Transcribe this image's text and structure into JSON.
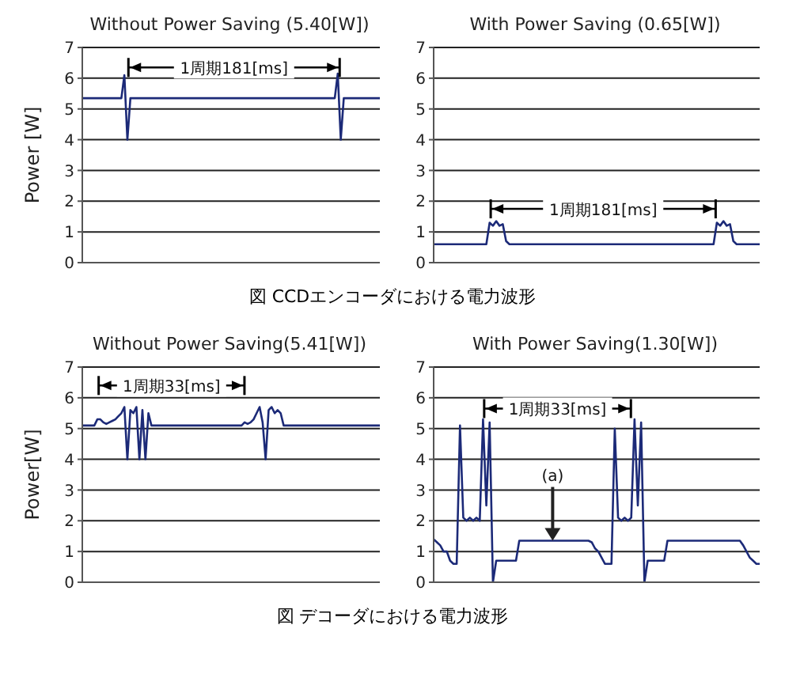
{
  "chart_data": [
    {
      "type": "line",
      "title": "Without Power Saving (5.40[W])",
      "ylabel": "Power [W]",
      "ylim": [
        0,
        7
      ],
      "yticks": [
        0,
        1,
        2,
        3,
        4,
        5,
        6,
        7
      ],
      "grid": "y",
      "tick_labels": "y",
      "marker": "none",
      "annotations": [
        "1周期181[ms]",
        "図 CCDエンコーダにおける電力波形"
      ],
      "categories": [
        null,
        null,
        null,
        null,
        null,
        null,
        null,
        null,
        null,
        null,
        null,
        null,
        null,
        null,
        null,
        null,
        null,
        null,
        null,
        null,
        null,
        null,
        null,
        null,
        null,
        null,
        null,
        null,
        null,
        null,
        null,
        null,
        null,
        null,
        null,
        null,
        null,
        null,
        null,
        null,
        null,
        null,
        null,
        null,
        null,
        null,
        null,
        null,
        null,
        null,
        null,
        null,
        null,
        null,
        null,
        null,
        null,
        null,
        null,
        null,
        null,
        null,
        null,
        null,
        null,
        null,
        null,
        null,
        null,
        null,
        null,
        null,
        null,
        null,
        null,
        null,
        null,
        null,
        null,
        null,
        null,
        null,
        null,
        null,
        null,
        null,
        null,
        null,
        null,
        null,
        null,
        null,
        null,
        null,
        null,
        null,
        null,
        null,
        null,
        null
      ],
      "series": [
        {
          "color": "#1c2a78",
          "values": [
            5.35,
            5.35,
            5.35,
            5.35,
            5.35,
            5.35,
            5.35,
            5.35,
            5.35,
            5.35,
            5.35,
            5.35,
            5.35,
            5.35,
            6.1,
            4.0,
            5.35,
            5.35,
            5.35,
            5.35,
            5.35,
            5.35,
            5.35,
            5.35,
            5.35,
            5.35,
            5.35,
            5.35,
            5.35,
            5.35,
            5.35,
            5.35,
            5.35,
            5.35,
            5.35,
            5.35,
            5.35,
            5.35,
            5.35,
            5.35,
            5.35,
            5.35,
            5.35,
            5.35,
            5.35,
            5.35,
            5.35,
            5.35,
            5.35,
            5.35,
            5.35,
            5.35,
            5.35,
            5.35,
            5.35,
            5.35,
            5.35,
            5.35,
            5.35,
            5.35,
            5.35,
            5.35,
            5.35,
            5.35,
            5.35,
            5.35,
            5.35,
            5.35,
            5.35,
            5.35,
            5.35,
            5.35,
            5.35,
            5.35,
            5.35,
            5.35,
            5.35,
            5.35,
            5.35,
            5.35,
            5.35,
            5.35,
            5.35,
            5.35,
            5.35,
            6.15,
            4.0,
            5.35,
            5.35,
            5.35,
            5.35,
            5.35,
            5.35,
            5.35,
            5.35,
            5.35,
            5.35,
            5.35,
            5.35,
            5.35
          ]
        }
      ]
    },
    {
      "type": "line",
      "title": "With Power Saving (0.65[W])",
      "ylim": [
        0,
        7
      ],
      "yticks": [
        0,
        1,
        2,
        3,
        4,
        5,
        6,
        7
      ],
      "grid": "y",
      "tick_labels": "y",
      "marker": "none",
      "annotations": [
        "1周期181[ms]"
      ],
      "categories": [
        null,
        null,
        null,
        null,
        null,
        null,
        null,
        null,
        null,
        null,
        null,
        null,
        null,
        null,
        null,
        null,
        null,
        null,
        null,
        null,
        null,
        null,
        null,
        null,
        null,
        null,
        null,
        null,
        null,
        null,
        null,
        null,
        null,
        null,
        null,
        null,
        null,
        null,
        null,
        null,
        null,
        null,
        null,
        null,
        null,
        null,
        null,
        null,
        null,
        null,
        null,
        null,
        null,
        null,
        null,
        null,
        null,
        null,
        null,
        null,
        null,
        null,
        null,
        null,
        null,
        null,
        null,
        null,
        null,
        null,
        null,
        null,
        null,
        null,
        null,
        null,
        null,
        null,
        null,
        null,
        null,
        null,
        null,
        null,
        null,
        null,
        null,
        null,
        null,
        null,
        null,
        null,
        null,
        null,
        null,
        null,
        null,
        null,
        null,
        null
      ],
      "series": [
        {
          "color": "#1c2a78",
          "values": [
            0.6,
            0.6,
            0.6,
            0.6,
            0.6,
            0.6,
            0.6,
            0.6,
            0.6,
            0.6,
            0.6,
            0.6,
            0.6,
            0.6,
            0.6,
            0.6,
            0.6,
            1.3,
            1.2,
            1.35,
            1.2,
            1.25,
            0.7,
            0.6,
            0.6,
            0.6,
            0.6,
            0.6,
            0.6,
            0.6,
            0.6,
            0.6,
            0.6,
            0.6,
            0.6,
            0.6,
            0.6,
            0.6,
            0.6,
            0.6,
            0.6,
            0.6,
            0.6,
            0.6,
            0.6,
            0.6,
            0.6,
            0.6,
            0.6,
            0.6,
            0.6,
            0.6,
            0.6,
            0.6,
            0.6,
            0.6,
            0.6,
            0.6,
            0.6,
            0.6,
            0.6,
            0.6,
            0.6,
            0.6,
            0.6,
            0.6,
            0.6,
            0.6,
            0.6,
            0.6,
            0.6,
            0.6,
            0.6,
            0.6,
            0.6,
            0.6,
            0.6,
            0.6,
            0.6,
            0.6,
            0.6,
            0.6,
            0.6,
            0.6,
            0.6,
            0.6,
            1.3,
            1.2,
            1.35,
            1.2,
            1.25,
            0.7,
            0.6,
            0.6,
            0.6,
            0.6,
            0.6,
            0.6,
            0.6,
            0.6
          ]
        }
      ]
    },
    {
      "type": "line",
      "title": "Without Power Saving(5.41[W])",
      "ylabel": "Power[W]",
      "ylim": [
        0,
        7
      ],
      "yticks": [
        0,
        1,
        2,
        3,
        4,
        5,
        6,
        7
      ],
      "grid": "y",
      "tick_labels": "y",
      "marker": "none",
      "annotations": [
        "1周期33[ms]",
        "図 デコーダにおける電力波形"
      ],
      "categories": [
        null,
        null,
        null,
        null,
        null,
        null,
        null,
        null,
        null,
        null,
        null,
        null,
        null,
        null,
        null,
        null,
        null,
        null,
        null,
        null,
        null,
        null,
        null,
        null,
        null,
        null,
        null,
        null,
        null,
        null,
        null,
        null,
        null,
        null,
        null,
        null,
        null,
        null,
        null,
        null,
        null,
        null,
        null,
        null,
        null,
        null,
        null,
        null,
        null,
        null,
        null,
        null,
        null,
        null,
        null,
        null,
        null,
        null,
        null,
        null,
        null,
        null,
        null,
        null,
        null,
        null,
        null,
        null,
        null,
        null,
        null,
        null,
        null,
        null,
        null,
        null,
        null,
        null,
        null,
        null,
        null,
        null,
        null,
        null,
        null,
        null,
        null,
        null,
        null,
        null,
        null,
        null,
        null,
        null,
        null,
        null,
        null,
        null,
        null,
        null
      ],
      "series": [
        {
          "color": "#1c2a78",
          "values": [
            5.1,
            5.1,
            5.1,
            5.1,
            5.1,
            5.3,
            5.3,
            5.2,
            5.15,
            5.2,
            5.25,
            5.3,
            5.4,
            5.5,
            5.7,
            4.0,
            5.6,
            5.5,
            5.7,
            4.0,
            5.6,
            4.0,
            5.5,
            5.1,
            5.1,
            5.1,
            5.1,
            5.1,
            5.1,
            5.1,
            5.1,
            5.1,
            5.1,
            5.1,
            5.1,
            5.1,
            5.1,
            5.1,
            5.1,
            5.1,
            5.1,
            5.1,
            5.1,
            5.1,
            5.1,
            5.1,
            5.1,
            5.1,
            5.1,
            5.1,
            5.1,
            5.1,
            5.1,
            5.1,
            5.2,
            5.15,
            5.2,
            5.3,
            5.5,
            5.7,
            5.2,
            4.0,
            5.6,
            5.7,
            5.5,
            5.6,
            5.5,
            5.1,
            5.1,
            5.1,
            5.1,
            5.1,
            5.1,
            5.1,
            5.1,
            5.1,
            5.1,
            5.1,
            5.1,
            5.1,
            5.1,
            5.1,
            5.1,
            5.1,
            5.1,
            5.1,
            5.1,
            5.1,
            5.1,
            5.1,
            5.1,
            5.1,
            5.1,
            5.1,
            5.1,
            5.1,
            5.1,
            5.1,
            5.1,
            5.1
          ]
        }
      ]
    },
    {
      "type": "line",
      "title": "With Power Saving(1.30[W])",
      "ylim": [
        0,
        7
      ],
      "yticks": [
        0,
        1,
        2,
        3,
        4,
        5,
        6,
        7
      ],
      "grid": "y",
      "tick_labels": "y",
      "marker": "none",
      "annotations": [
        "1周期33[ms]",
        {
          "text": "(a)",
          "y": 1.35
        }
      ],
      "categories": [
        null,
        null,
        null,
        null,
        null,
        null,
        null,
        null,
        null,
        null,
        null,
        null,
        null,
        null,
        null,
        null,
        null,
        null,
        null,
        null,
        null,
        null,
        null,
        null,
        null,
        null,
        null,
        null,
        null,
        null,
        null,
        null,
        null,
        null,
        null,
        null,
        null,
        null,
        null,
        null,
        null,
        null,
        null,
        null,
        null,
        null,
        null,
        null,
        null,
        null,
        null,
        null,
        null,
        null,
        null,
        null,
        null,
        null,
        null,
        null,
        null,
        null,
        null,
        null,
        null,
        null,
        null,
        null,
        null,
        null,
        null,
        null,
        null,
        null,
        null,
        null,
        null,
        null,
        null,
        null,
        null,
        null,
        null,
        null,
        null,
        null,
        null,
        null,
        null,
        null,
        null,
        null,
        null,
        null,
        null,
        null,
        null,
        null,
        null,
        null
      ],
      "series": [
        {
          "color": "#1c2a78",
          "values": [
            1.4,
            1.3,
            1.2,
            1.0,
            1.0,
            0.7,
            0.6,
            0.6,
            5.1,
            2.1,
            2.0,
            2.1,
            2.0,
            2.1,
            2.0,
            5.3,
            2.5,
            5.2,
            0,
            0.7,
            0.7,
            0.7,
            0.7,
            0.7,
            0.7,
            0.7,
            1.35,
            1.35,
            1.35,
            1.35,
            1.35,
            1.35,
            1.35,
            1.35,
            1.35,
            1.35,
            1.35,
            1.35,
            1.35,
            1.35,
            1.35,
            1.35,
            1.35,
            1.35,
            1.35,
            1.35,
            1.35,
            1.35,
            1.3,
            1.1,
            1.0,
            0.8,
            0.6,
            0.6,
            0.6,
            5.0,
            2.1,
            2.0,
            2.1,
            2.0,
            2.1,
            5.3,
            2.5,
            5.2,
            0,
            0.7,
            0.7,
            0.7,
            0.7,
            0.7,
            0.7,
            1.35,
            1.35,
            1.35,
            1.35,
            1.35,
            1.35,
            1.35,
            1.35,
            1.35,
            1.35,
            1.35,
            1.35,
            1.35,
            1.35,
            1.35,
            1.35,
            1.35,
            1.35,
            1.35,
            1.35,
            1.35,
            1.35,
            1.35,
            1.2,
            1.0,
            0.8,
            0.7,
            0.6,
            0.6
          ]
        }
      ]
    }
  ]
}
